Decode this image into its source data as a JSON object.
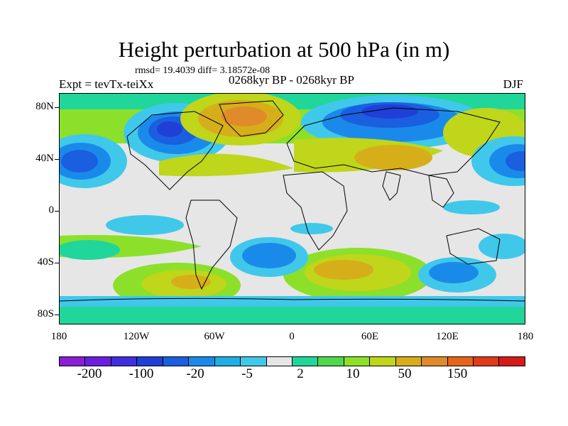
{
  "title": "Height perturbation at 500 hPa (in m)",
  "stats": "rmsd= 19.4039 diff= 3.18572e-08",
  "expt": "Expt = tevTx-teiXx",
  "period": "0268kyr BP - 0268kyr BP",
  "season": "DJF",
  "y_ticks": [
    "80N",
    "40N",
    "0",
    "40S",
    "80S"
  ],
  "x_ticks": [
    "180",
    "120W",
    "60W",
    "0",
    "60E",
    "120E",
    "180"
  ],
  "colorbar": {
    "colors": [
      "#8a1fd6",
      "#6a1fe0",
      "#3f2ee0",
      "#1f3fd6",
      "#1a5fe0",
      "#1a8aea",
      "#20aee6",
      "#40c8ea",
      "#e6e6e6",
      "#20d69a",
      "#4fd84a",
      "#8ce02a",
      "#bfd61a",
      "#d6ae1a",
      "#e08a2a",
      "#e6641a",
      "#e03a1a",
      "#d61a1a"
    ],
    "labels": [
      "-200",
      "-100",
      "-20",
      "-5",
      "2",
      "10",
      "50",
      "150"
    ]
  },
  "map_fill": {
    "background": "#e6e6e6",
    "coastline_color": "#000000"
  }
}
